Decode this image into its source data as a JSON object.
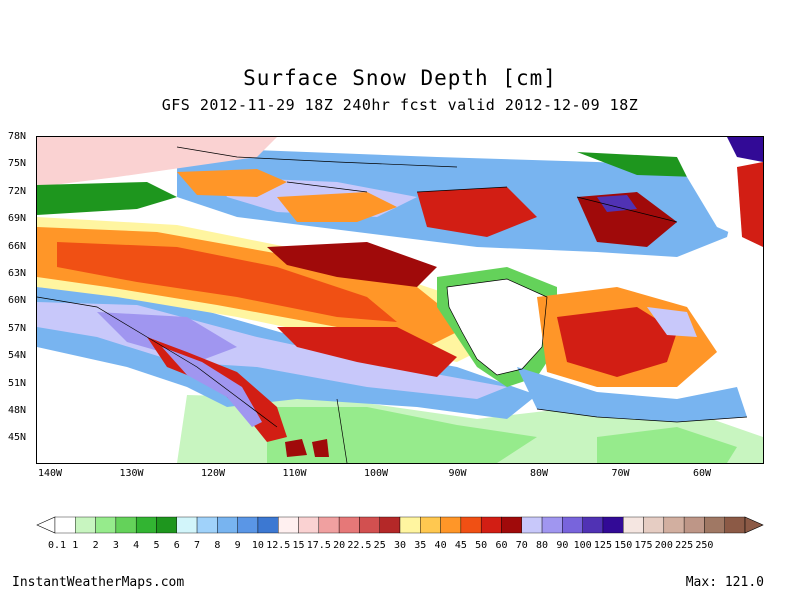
{
  "header": {
    "title": "Surface Snow Depth [cm]",
    "subtitle": "GFS 2012-11-29 18Z 240hr fcst valid 2012-12-09 18Z"
  },
  "axes": {
    "lat_labels": [
      "78N",
      "75N",
      "72N",
      "69N",
      "66N",
      "63N",
      "60N",
      "57N",
      "54N",
      "51N",
      "48N",
      "45N"
    ],
    "lon_labels": [
      "140W",
      "130W",
      "120W",
      "110W",
      "100W",
      "90W",
      "80W",
      "70W",
      "60W"
    ]
  },
  "colorbar": {
    "labels": [
      "0.1",
      "1",
      "2",
      "3",
      "4",
      "5",
      "6",
      "7",
      "8",
      "9",
      "10",
      "12.5",
      "15",
      "17.5",
      "20",
      "22.5",
      "25",
      "30",
      "35",
      "40",
      "45",
      "50",
      "60",
      "70",
      "80",
      "90",
      "100",
      "125",
      "150",
      "175",
      "200",
      "225",
      "250"
    ],
    "colors": [
      "#ffffff",
      "#c8f5c0",
      "#96eb8c",
      "#64d25a",
      "#32b432",
      "#1e961e",
      "#d2f5fa",
      "#a0d2fa",
      "#78b4f0",
      "#5a96e6",
      "#3c78d2",
      "#fff0f0",
      "#fad2d2",
      "#f0a0a0",
      "#e67878",
      "#d25050",
      "#b42828",
      "#fff5a0",
      "#ffc850",
      "#ff9628",
      "#f05014",
      "#d21e14",
      "#a00a0a",
      "#c8c8fa",
      "#a096f0",
      "#7864dc",
      "#5032b4",
      "#320a96",
      "#f5e6e1",
      "#e6cdc3",
      "#d2afa0",
      "#be9687",
      "#a07864",
      "#8c5a46"
    ]
  },
  "footer": {
    "site": "InstantWeatherMaps.com",
    "max_label": "Max: 121.0"
  }
}
